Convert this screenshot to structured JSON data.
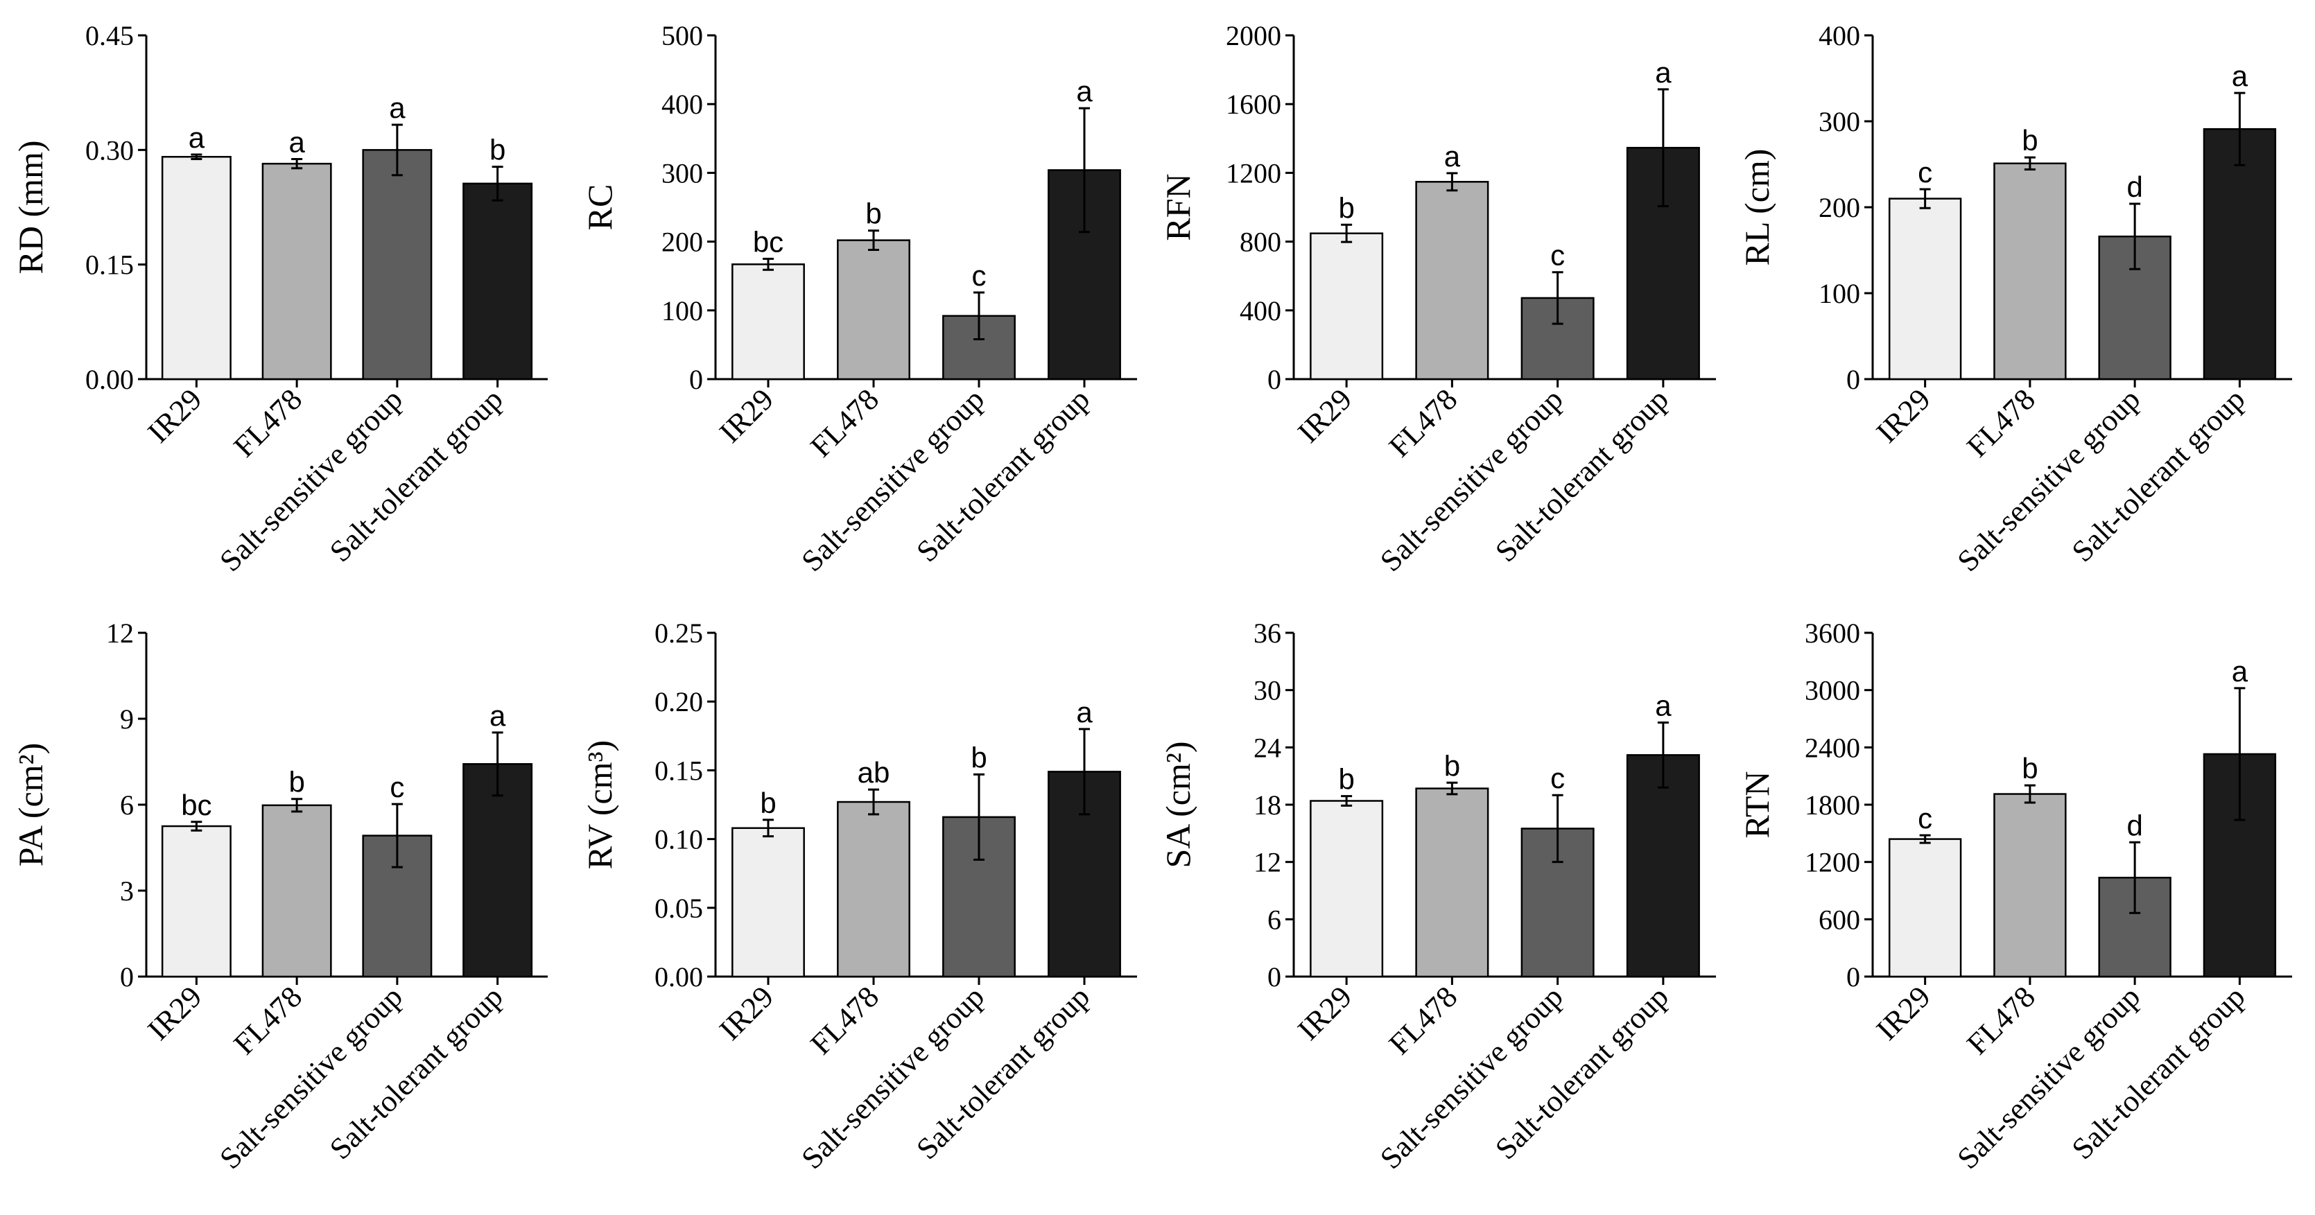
{
  "colors": {
    "bar_fills": [
      "#efefef",
      "#b1b1b1",
      "#5e5e5e",
      "#1c1c1c"
    ]
  },
  "chart_data": [
    {
      "type": "bar",
      "ylabel": "RD (mm)",
      "categories": [
        "IR29",
        "FL478",
        "Salt-sensitive group",
        "Salt-tolerant group"
      ],
      "values": [
        0.291,
        0.282,
        0.3,
        0.256
      ],
      "errors": [
        0.003,
        0.006,
        0.033,
        0.022
      ],
      "letters": [
        "a",
        "a",
        "a",
        "b"
      ],
      "ylim": [
        0,
        0.45
      ],
      "yticks": [
        0,
        0.15,
        0.3,
        0.45
      ],
      "ytick_labels": [
        "0.00",
        "0.15",
        "0.30",
        "0.45"
      ]
    },
    {
      "type": "bar",
      "ylabel": "RC",
      "categories": [
        "IR29",
        "FL478",
        "Salt-sensitive group",
        "Salt-tolerant group"
      ],
      "values": [
        167,
        202,
        92,
        304
      ],
      "errors": [
        8,
        14,
        34,
        90
      ],
      "letters": [
        "bc",
        "b",
        "c",
        "a"
      ],
      "ylim": [
        0,
        500
      ],
      "yticks": [
        0,
        100,
        200,
        300,
        400,
        500
      ],
      "ytick_labels": [
        "0",
        "100",
        "200",
        "300",
        "400",
        "500"
      ]
    },
    {
      "type": "bar",
      "ylabel": "RFN",
      "categories": [
        "IR29",
        "FL478",
        "Salt-sensitive group",
        "Salt-tolerant group"
      ],
      "values": [
        848,
        1148,
        472,
        1346
      ],
      "errors": [
        50,
        50,
        150,
        340
      ],
      "letters": [
        "b",
        "a",
        "c",
        "a"
      ],
      "ylim": [
        0,
        2000
      ],
      "yticks": [
        0,
        400,
        800,
        1200,
        1600,
        2000
      ],
      "ytick_labels": [
        "0",
        "400",
        "800",
        "1200",
        "1600",
        "2000"
      ]
    },
    {
      "type": "bar",
      "ylabel": "RL (cm)",
      "categories": [
        "IR29",
        "FL478",
        "Salt-sensitive group",
        "Salt-tolerant group"
      ],
      "values": [
        210,
        251,
        166,
        291
      ],
      "errors": [
        11,
        7,
        38,
        42
      ],
      "letters": [
        "c",
        "b",
        "d",
        "a"
      ],
      "ylim": [
        0,
        400
      ],
      "yticks": [
        0,
        100,
        200,
        300,
        400
      ],
      "ytick_labels": [
        "0",
        "100",
        "200",
        "300",
        "400"
      ]
    },
    {
      "type": "bar",
      "ylabel": "PA (cm²)",
      "categories": [
        "IR29",
        "FL478",
        "Salt-sensitive group",
        "Salt-tolerant group"
      ],
      "values": [
        5.25,
        5.98,
        4.92,
        7.42
      ],
      "errors": [
        0.15,
        0.22,
        1.1,
        1.1
      ],
      "letters": [
        "bc",
        "b",
        "c",
        "a"
      ],
      "ylim": [
        0,
        12
      ],
      "yticks": [
        0,
        3,
        6,
        9,
        12
      ],
      "ytick_labels": [
        "0",
        "3",
        "6",
        "9",
        "12"
      ]
    },
    {
      "type": "bar",
      "ylabel": "RV (cm³)",
      "categories": [
        "IR29",
        "FL478",
        "Salt-sensitive group",
        "Salt-tolerant group"
      ],
      "values": [
        0.108,
        0.127,
        0.116,
        0.149
      ],
      "errors": [
        0.006,
        0.009,
        0.031,
        0.031
      ],
      "letters": [
        "b",
        "ab",
        "b",
        "a"
      ],
      "ylim": [
        0,
        0.25
      ],
      "yticks": [
        0,
        0.05,
        0.1,
        0.15,
        0.2,
        0.25
      ],
      "ytick_labels": [
        "0.00",
        "0.05",
        "0.10",
        "0.15",
        "0.20",
        "0.25"
      ]
    },
    {
      "type": "bar",
      "ylabel": "SA (cm²)",
      "categories": [
        "IR29",
        "FL478",
        "Salt-sensitive group",
        "Salt-tolerant group"
      ],
      "values": [
        18.4,
        19.7,
        15.5,
        23.2
      ],
      "errors": [
        0.5,
        0.6,
        3.5,
        3.4
      ],
      "letters": [
        "b",
        "b",
        "c",
        "a"
      ],
      "ylim": [
        0,
        36
      ],
      "yticks": [
        0,
        6,
        12,
        18,
        24,
        30,
        36
      ],
      "ytick_labels": [
        "0",
        "6",
        "12",
        "18",
        "24",
        "30",
        "36"
      ]
    },
    {
      "type": "bar",
      "ylabel": "RTN",
      "categories": [
        "IR29",
        "FL478",
        "Salt-sensitive group",
        "Salt-tolerant group"
      ],
      "values": [
        1440,
        1912,
        1036,
        2330
      ],
      "errors": [
        40,
        90,
        370,
        690
      ],
      "letters": [
        "c",
        "b",
        "d",
        "a"
      ],
      "ylim": [
        0,
        3600
      ],
      "yticks": [
        0,
        600,
        1200,
        1800,
        2400,
        3000,
        3600
      ],
      "ytick_labels": [
        "0",
        "600",
        "1200",
        "1800",
        "2400",
        "3000",
        "3600"
      ]
    }
  ]
}
